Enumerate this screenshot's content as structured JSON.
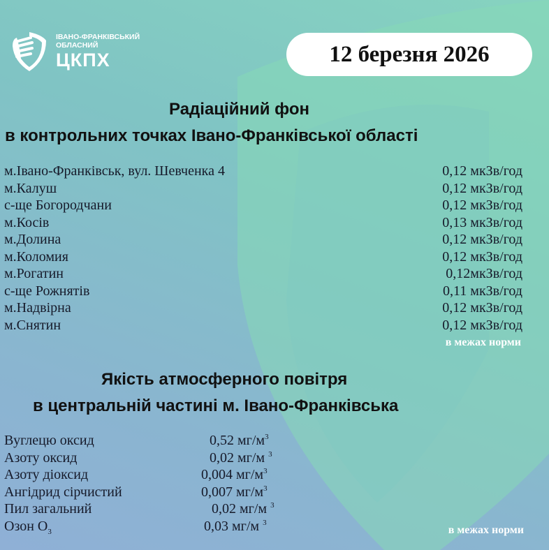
{
  "logo": {
    "line1": "ІВАНО-ФРАНКІВСЬКИЙ",
    "line2": "ОБЛАСНИЙ",
    "main": "ЦКПХ"
  },
  "date": "12 березня 2026",
  "radiation": {
    "title_line1": "Радіаційний фон",
    "title_line2": "в контрольних точках Івано-Франківської області",
    "rows": [
      {
        "place": "м.Івано-Франківськ, вул. Шевченка 4",
        "value": "0,12 мкЗв/год"
      },
      {
        "place": "м.Калуш",
        "value": "0,12 мкЗв/год"
      },
      {
        "place": "с-ще Богородчани",
        "value": "0,12 мкЗв/год"
      },
      {
        "place": "м.Косів",
        "value": "0,13 мкЗв/год"
      },
      {
        "place": "м.Долина",
        "value": "0,12 мкЗв/год"
      },
      {
        "place": "м.Коломия",
        "value": "0,12 мкЗв/год"
      },
      {
        "place": "м.Рогатин",
        "value": "0,12мкЗв/год"
      },
      {
        "place": "с-ще Рожнятів",
        "value": "0,11 мкЗв/год"
      },
      {
        "place": "м.Надвірна",
        "value": "0,12 мкЗв/год"
      },
      {
        "place": "м.Снятин",
        "value": "0,12 мкЗв/год"
      }
    ],
    "status": "в межах норми"
  },
  "air": {
    "title_line1": "Якість атмосферного повітря",
    "title_line2": "в центральній частині м. Івано-Франківська",
    "rows": [
      {
        "name": "Вуглецю оксид",
        "value": "0,52 мг/м",
        "unit_sup": "3"
      },
      {
        "name": "Азоту оксид",
        "value": "0,02 мг/м ",
        "unit_sup": "3"
      },
      {
        "name": "Азоту діоксид",
        "value": "0,004 мг/м",
        "unit_sup": "3"
      },
      {
        "name": "Ангідрид сірчистий",
        "value": "0,007 мг/м",
        "unit_sup": "3"
      },
      {
        "name": "Пил загальний",
        "value": "0,02 мг/м ",
        "unit_sup": "3"
      },
      {
        "name": "Озон О",
        "name_sub": "3",
        "value": "0,03 мг/м ",
        "unit_sup": "3"
      }
    ],
    "status": "в межах норми"
  },
  "colors": {
    "shield": "#86d9b6",
    "text": "#161a2a",
    "pill": "#ffffff"
  }
}
